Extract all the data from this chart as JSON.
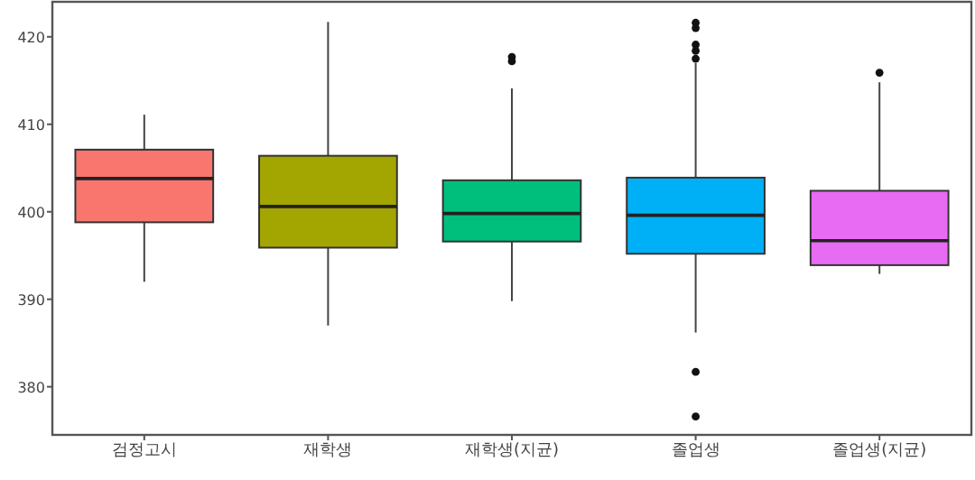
{
  "chart_data": {
    "type": "box",
    "categories": [
      "검정고시",
      "재학생",
      "재학생(지균)",
      "졸업생",
      "졸업생(지균)"
    ],
    "colors": [
      "#f8766d",
      "#a3a500",
      "#00bf7d",
      "#00b0f6",
      "#e76bf3"
    ],
    "boxes": [
      {
        "low": 392.0,
        "q1": 398.8,
        "median": 403.8,
        "q3": 407.1,
        "high": 411.1
      },
      {
        "low": 387.0,
        "q1": 395.9,
        "median": 400.6,
        "q3": 406.4,
        "high": 421.7
      },
      {
        "low": 389.8,
        "q1": 396.6,
        "median": 399.8,
        "q3": 403.6,
        "high": 414.1,
        "outliers": [
          417.2,
          417.7
        ]
      },
      {
        "low": 386.2,
        "q1": 395.2,
        "median": 399.6,
        "q3": 403.9,
        "high": 417.0,
        "outliers": [
          376.6,
          381.7,
          417.5,
          418.4,
          419.1,
          421.0,
          421.6
        ]
      },
      {
        "low": 392.9,
        "q1": 393.9,
        "median": 396.7,
        "q3": 402.4,
        "high": 414.8,
        "outliers": [
          415.9
        ]
      }
    ],
    "ylim": [
      374.5,
      424
    ],
    "yticks": [
      380,
      390,
      400,
      410,
      420
    ],
    "grid": false
  }
}
